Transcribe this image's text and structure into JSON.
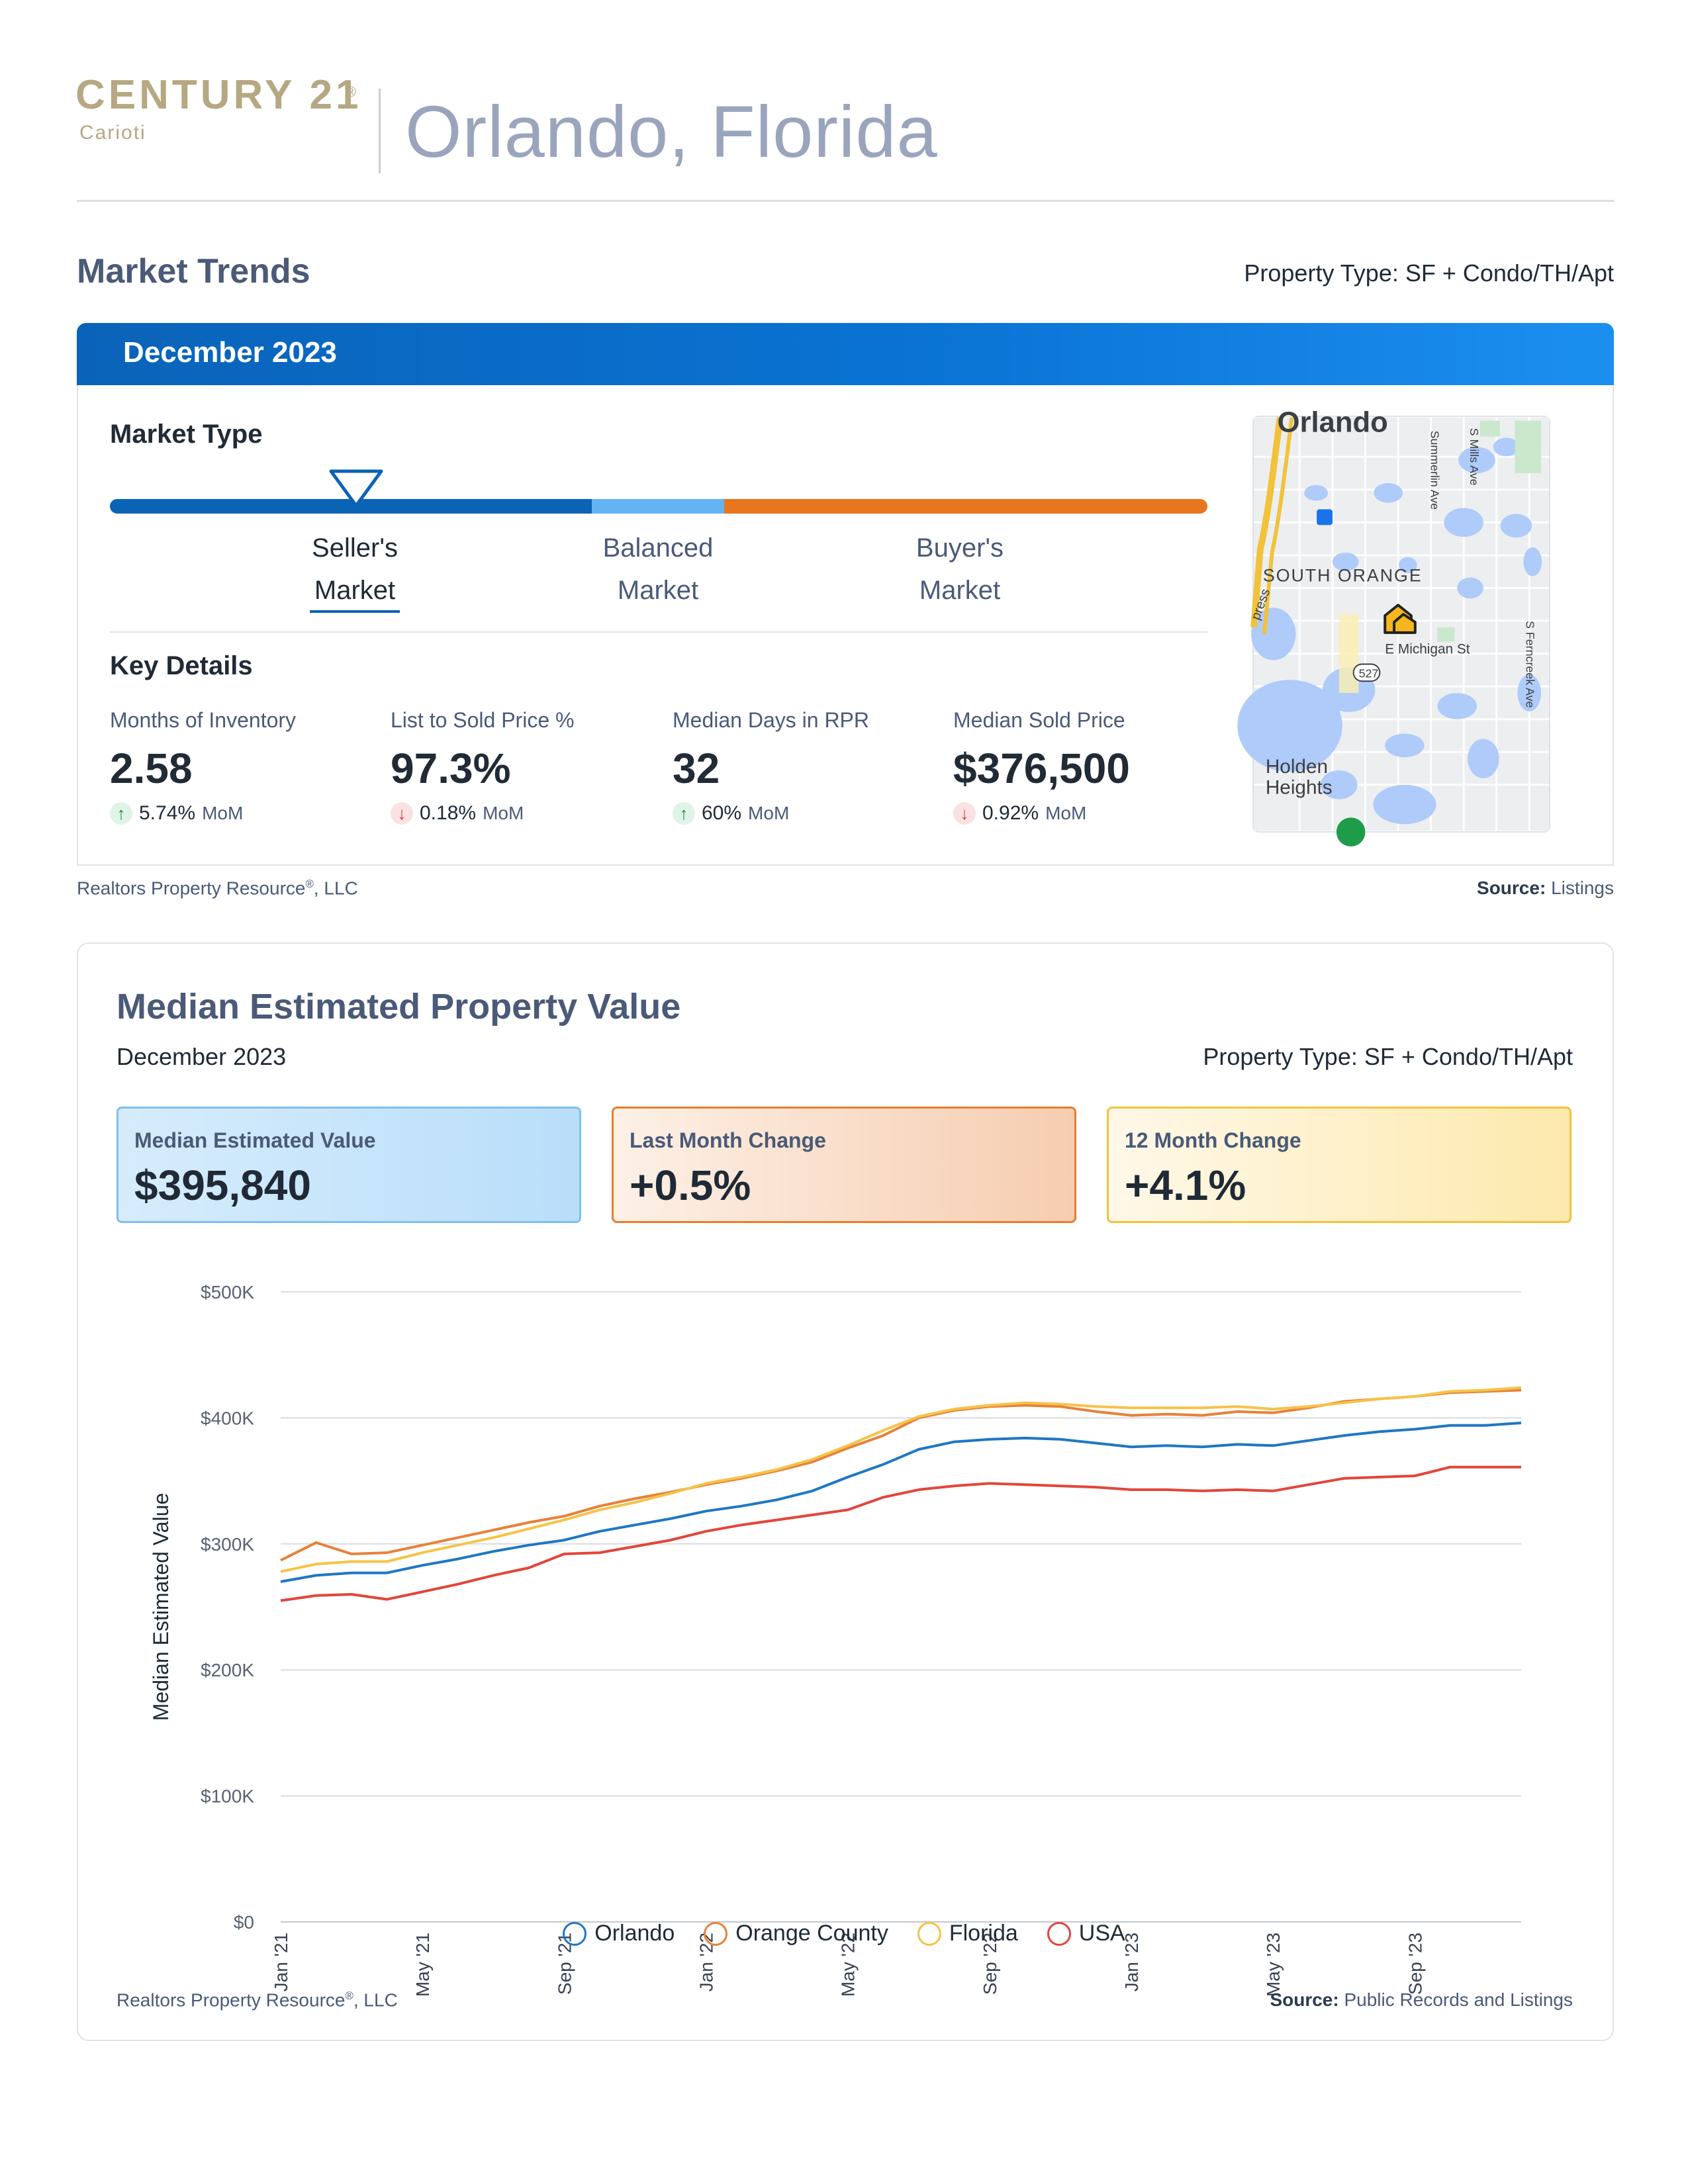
{
  "brand": {
    "name": "CENTURY 21",
    "reg": "®",
    "sub": "Carioti"
  },
  "city_title": "Orlando, Florida",
  "market_trends": {
    "title": "Market Trends",
    "property_type": "Property Type: SF + Condo/TH/Apt",
    "period": "December 2023",
    "market_type_label": "Market Type",
    "market_type_selected": "Seller's Market",
    "market_labels": {
      "seller": [
        "Seller's",
        "Market"
      ],
      "balanced": [
        "Balanced",
        "Market"
      ],
      "buyer": [
        "Buyer's",
        "Market"
      ]
    },
    "key_details_title": "Key Details",
    "key_details": [
      {
        "label": "Months of Inventory",
        "value": "2.58",
        "direction": "up",
        "change": "5.74%",
        "unit": "MoM"
      },
      {
        "label": "List to Sold Price %",
        "value": "97.3%",
        "direction": "down",
        "change": "0.18%",
        "unit": "MoM"
      },
      {
        "label": "Median Days in RPR",
        "value": "32",
        "direction": "up",
        "change": "60%",
        "unit": "MoM"
      },
      {
        "label": "Median Sold Price",
        "value": "$376,500",
        "direction": "down",
        "change": "0.92%",
        "unit": "MoM"
      }
    ],
    "map_labels": {
      "city": "Orlando",
      "area": "SOUTH ORANGE",
      "street1": "E Michigan St",
      "route": "527",
      "street2": "S Ferncreek Ave",
      "street3": "Summerlin Ave",
      "street4": "S Mills Ave",
      "neighborhood1": "Holden",
      "neighborhood2": "Heights",
      "road": "press"
    },
    "footer_left": "Realtors Property Resource",
    "footer_left_suffix": ", LLC",
    "footer_reg": "®",
    "footer_right_label": "Source:",
    "footer_right_value": "Listings"
  },
  "property_value": {
    "title": "Median Estimated Property Value",
    "period": "December 2023",
    "property_type": "Property Type: SF + Condo/TH/Apt",
    "stats": [
      {
        "label": "Median Estimated Value",
        "value": "$395,840"
      },
      {
        "label": "Last Month Change",
        "value": "+0.5%"
      },
      {
        "label": "12 Month Change",
        "value": "+4.1%"
      }
    ],
    "footer_left": "Realtors Property Resource",
    "footer_left_suffix": ", LLC",
    "footer_reg": "®",
    "footer_right_label": "Source:",
    "footer_right_value": "Public Records and Listings"
  },
  "chart_data": {
    "type": "line",
    "title": "Median Estimated Property Value",
    "xlabel": "",
    "ylabel": "Median Estimated Value",
    "ylim": [
      0,
      500000
    ],
    "yticks": [
      0,
      100000,
      200000,
      300000,
      400000,
      500000
    ],
    "ytick_labels": [
      "$0",
      "$100K",
      "$200K",
      "$300K",
      "$400K",
      "$500K"
    ],
    "x": [
      "Jan '21",
      "Feb '21",
      "Mar '21",
      "Apr '21",
      "May '21",
      "Jun '21",
      "Jul '21",
      "Aug '21",
      "Sep '21",
      "Oct '21",
      "Nov '21",
      "Dec '21",
      "Jan '22",
      "Feb '22",
      "Mar '22",
      "Apr '22",
      "May '22",
      "Jun '22",
      "Jul '22",
      "Aug '22",
      "Sep '22",
      "Oct '22",
      "Nov '22",
      "Dec '22",
      "Jan '23",
      "Feb '23",
      "Mar '23",
      "Apr '23",
      "May '23",
      "Jun '23",
      "Jul '23",
      "Aug '23",
      "Sep '23",
      "Oct '23",
      "Nov '23",
      "Dec '23"
    ],
    "xtick_labels": [
      "Jan '21",
      "May '21",
      "Sep '21",
      "Jan '22",
      "May '22",
      "Sep '22",
      "Jan '23",
      "May '23",
      "Sep '23"
    ],
    "grid": true,
    "legend_position": "bottom",
    "series": [
      {
        "name": "Orlando",
        "color": "#1f77c4",
        "values": [
          270000,
          275000,
          277000,
          277000,
          283000,
          288000,
          294000,
          299000,
          303000,
          310000,
          315000,
          320000,
          326000,
          330000,
          335000,
          342000,
          353000,
          363000,
          375000,
          381000,
          383000,
          384000,
          383000,
          380000,
          377000,
          378000,
          377000,
          379000,
          378000,
          382000,
          386000,
          389000,
          391000,
          394000,
          394000,
          396000
        ]
      },
      {
        "name": "Orange County",
        "color": "#e8813a",
        "values": [
          287000,
          301000,
          292000,
          293000,
          299000,
          305000,
          311000,
          317000,
          322000,
          330000,
          336000,
          341000,
          347000,
          352000,
          358000,
          365000,
          376000,
          386000,
          400000,
          406000,
          409000,
          410000,
          409000,
          405000,
          402000,
          403000,
          402000,
          405000,
          404000,
          408000,
          413000,
          415000,
          417000,
          420000,
          421000,
          422000
        ]
      },
      {
        "name": "Florida",
        "color": "#f6c348",
        "values": [
          278000,
          284000,
          286000,
          286000,
          293000,
          299000,
          305000,
          312000,
          319000,
          327000,
          333000,
          340000,
          348000,
          353000,
          359000,
          367000,
          378000,
          390000,
          401000,
          407000,
          410000,
          412000,
          411000,
          409000,
          408000,
          408000,
          408000,
          409000,
          407000,
          409000,
          412000,
          415000,
          417000,
          421000,
          422000,
          424000
        ]
      },
      {
        "name": "USA",
        "color": "#e2463a",
        "values": [
          255000,
          259000,
          260000,
          256000,
          262000,
          268000,
          275000,
          281000,
          292000,
          293000,
          298000,
          303000,
          310000,
          315000,
          319000,
          323000,
          327000,
          337000,
          343000,
          346000,
          348000,
          347000,
          346000,
          345000,
          343000,
          343000,
          342000,
          343000,
          342000,
          347000,
          352000,
          353000,
          354000,
          361000,
          361000,
          361000
        ]
      }
    ]
  }
}
